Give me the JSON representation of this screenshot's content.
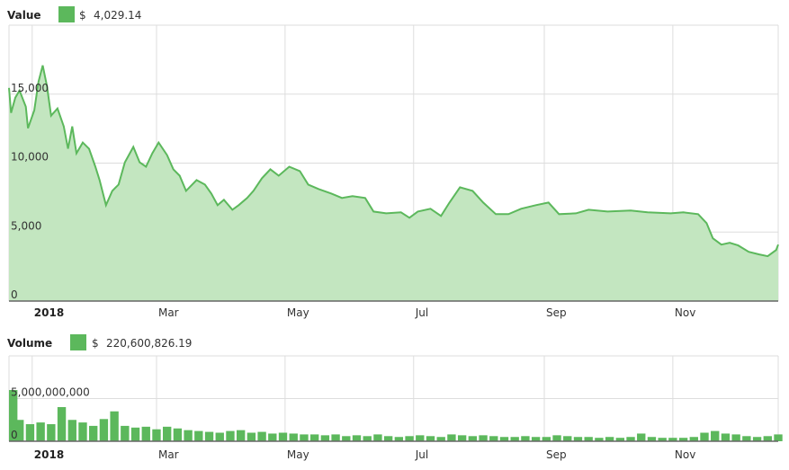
{
  "chart_data": [
    {
      "type": "area",
      "legend_title": "Value",
      "legend_prefix": "$",
      "legend_value": "4,029.14",
      "x": [
        -11,
        -10,
        -8,
        -6,
        -3,
        -2,
        1,
        3,
        5,
        7,
        9,
        12,
        15,
        17,
        19,
        21,
        24,
        27,
        30,
        32,
        35,
        38,
        41,
        44,
        48,
        51,
        54,
        57,
        60,
        64,
        67,
        70,
        73,
        78,
        82,
        85,
        88,
        91,
        95,
        98,
        102,
        105,
        109,
        113,
        117,
        122,
        127,
        131,
        136,
        142,
        147,
        152,
        158,
        162,
        168,
        175,
        179,
        183,
        189,
        194,
        198,
        203,
        209,
        214,
        220,
        226,
        232,
        239,
        245,
        250,
        258,
        264,
        273,
        284,
        292,
        303,
        309,
        316,
        320,
        323,
        327,
        331,
        335,
        340,
        345,
        349,
        353,
        354
      ],
      "series": [
        {
          "name": "Value",
          "color": "#5cb85c",
          "fill": "#c3e6c0",
          "values": [
            15450,
            13640,
            14740,
            15260,
            14090,
            12530,
            13830,
            15900,
            17080,
            15580,
            13440,
            13960,
            12660,
            11040,
            12660,
            10710,
            11490,
            11040,
            9740,
            8770,
            6950,
            7990,
            8440,
            10060,
            11170,
            10060,
            9740,
            10710,
            11490,
            10580,
            9550,
            9090,
            7990,
            8770,
            8440,
            7790,
            6950,
            7340,
            6620,
            6950,
            7470,
            7990,
            8900,
            9550,
            9090,
            9740,
            9420,
            8440,
            8120,
            7790,
            7470,
            7600,
            7470,
            6490,
            6360,
            6430,
            6040,
            6490,
            6690,
            6170,
            7140,
            8250,
            7990,
            7140,
            6300,
            6300,
            6690,
            6950,
            7140,
            6300,
            6360,
            6620,
            6490,
            6560,
            6430,
            6360,
            6430,
            6300,
            5650,
            4550,
            4090,
            4220,
            4030,
            3570,
            3380,
            3250,
            3700,
            4090
          ]
        }
      ],
      "xlim": [
        -11,
        354
      ],
      "xticks": [
        {
          "value": 0,
          "label": "2018"
        },
        {
          "value": 59,
          "label": "Mar"
        },
        {
          "value": 120,
          "label": "May"
        },
        {
          "value": 181,
          "label": "Jul"
        },
        {
          "value": 243,
          "label": "Sep"
        },
        {
          "value": 304,
          "label": "Nov"
        }
      ],
      "ylim": [
        0,
        20000
      ],
      "yticks": [
        0,
        {
          "value": 5000,
          "label": "5,000"
        },
        {
          "value": 10000,
          "label": "10,000"
        },
        {
          "value": 15000,
          "label": "15,000"
        }
      ],
      "grid": true
    },
    {
      "type": "bar",
      "legend_title": "Volume",
      "legend_prefix": "$",
      "legend_value": "220,600,826.19",
      "x": [
        -11,
        -6,
        -1,
        4,
        9,
        14,
        19,
        24,
        29,
        34,
        39,
        44,
        49,
        54,
        59,
        64,
        69,
        74,
        79,
        84,
        89,
        94,
        99,
        104,
        109,
        114,
        119,
        124,
        129,
        134,
        139,
        144,
        149,
        154,
        159,
        164,
        169,
        174,
        179,
        184,
        189,
        194,
        199,
        204,
        209,
        214,
        219,
        224,
        229,
        234,
        239,
        244,
        249,
        254,
        259,
        264,
        269,
        274,
        279,
        284,
        289,
        294,
        299,
        304,
        309,
        314,
        319,
        324,
        329,
        334,
        339,
        344,
        349,
        354
      ],
      "series": [
        {
          "name": "Volume",
          "color": "#5cb85c",
          "values": [
            6000000000,
            2500000000,
            2000000000,
            2200000000,
            2000000000,
            4000000000,
            2500000000,
            2200000000,
            1800000000,
            2600000000,
            3500000000,
            1800000000,
            1600000000,
            1700000000,
            1400000000,
            1700000000,
            1500000000,
            1300000000,
            1200000000,
            1100000000,
            1000000000,
            1200000000,
            1300000000,
            1000000000,
            1100000000,
            900000000,
            1000000000,
            900000000,
            800000000,
            800000000,
            700000000,
            800000000,
            600000000,
            700000000,
            600000000,
            800000000,
            600000000,
            500000000,
            600000000,
            700000000,
            600000000,
            500000000,
            800000000,
            700000000,
            600000000,
            700000000,
            600000000,
            500000000,
            500000000,
            600000000,
            500000000,
            500000000,
            700000000,
            600000000,
            500000000,
            500000000,
            400000000,
            500000000,
            400000000,
            500000000,
            900000000,
            500000000,
            400000000,
            400000000,
            400000000,
            500000000,
            1000000000,
            1200000000,
            900000000,
            800000000,
            600000000,
            500000000,
            600000000,
            800000000
          ]
        }
      ],
      "xlim": [
        -11,
        354
      ],
      "xticks": [
        {
          "value": 0,
          "label": "2018"
        },
        {
          "value": 59,
          "label": "Mar"
        },
        {
          "value": 120,
          "label": "May"
        },
        {
          "value": 181,
          "label": "Jul"
        },
        {
          "value": 243,
          "label": "Sep"
        },
        {
          "value": 304,
          "label": "Nov"
        }
      ],
      "ylim": [
        0,
        10000000000
      ],
      "yticks": [
        0,
        {
          "value": 5000000000,
          "label": "5,000,000,000"
        }
      ],
      "grid": true
    }
  ]
}
